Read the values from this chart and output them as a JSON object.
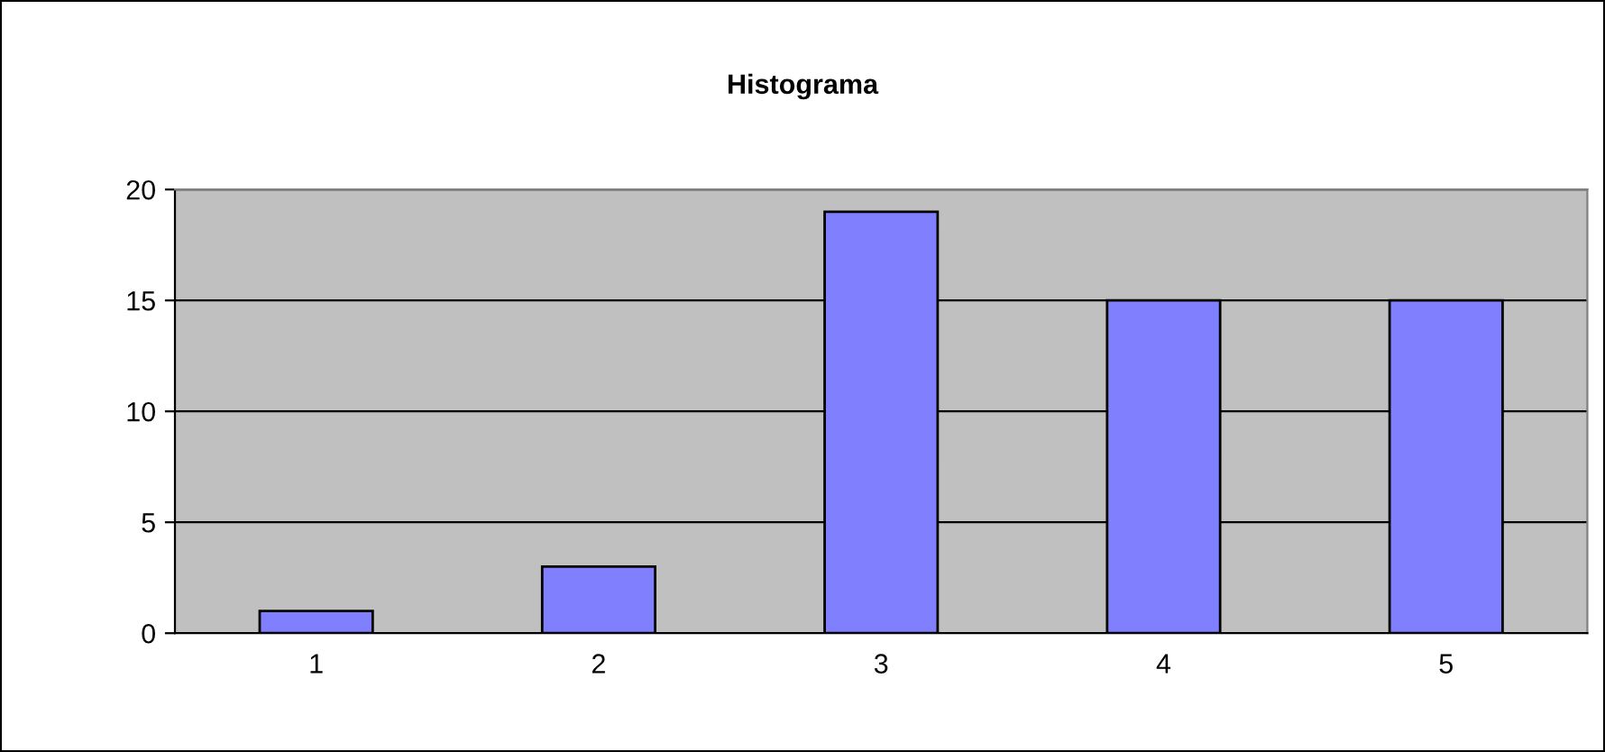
{
  "chart_data": {
    "type": "bar",
    "title": "Histograma",
    "categories": [
      "1",
      "2",
      "3",
      "4",
      "5"
    ],
    "values": [
      1,
      3,
      19,
      15,
      15
    ],
    "color": "#8080ff",
    "ylim": [
      0,
      20
    ],
    "yticks": [
      0,
      5,
      10,
      15,
      20
    ],
    "grid": "y",
    "legend": false
  }
}
